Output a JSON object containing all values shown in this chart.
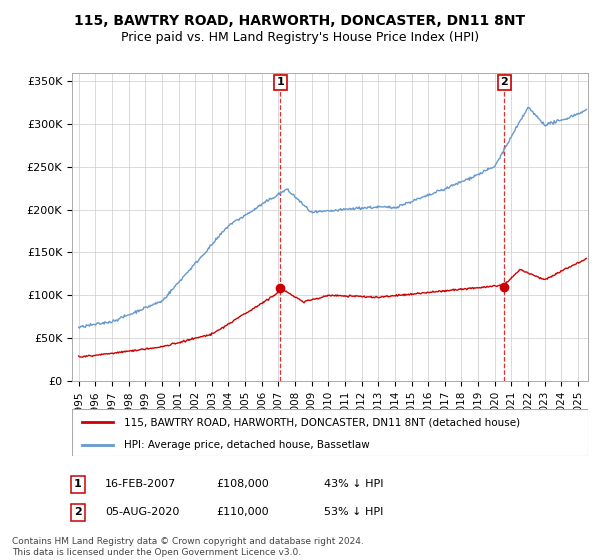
{
  "title": "115, BAWTRY ROAD, HARWORTH, DONCASTER, DN11 8NT",
  "subtitle": "Price paid vs. HM Land Registry's House Price Index (HPI)",
  "ylim": [
    0,
    360000
  ],
  "yticks": [
    0,
    50000,
    100000,
    150000,
    200000,
    250000,
    300000,
    350000
  ],
  "ytick_labels": [
    "£0",
    "£50K",
    "£100K",
    "£150K",
    "£200K",
    "£250K",
    "£300K",
    "£350K"
  ],
  "xlim_start": 1994.6,
  "xlim_end": 2025.6,
  "sale1_x": 2007.12,
  "sale1_y": 108000,
  "sale1_label": "1",
  "sale1_date": "16-FEB-2007",
  "sale1_price": "£108,000",
  "sale1_pct": "43% ↓ HPI",
  "sale2_x": 2020.58,
  "sale2_y": 110000,
  "sale2_label": "2",
  "sale2_date": "05-AUG-2020",
  "sale2_price": "£110,000",
  "sale2_pct": "53% ↓ HPI",
  "line_color_property": "#cc0000",
  "line_color_hpi": "#6699cc",
  "legend_label_property": "115, BAWTRY ROAD, HARWORTH, DONCASTER, DN11 8NT (detached house)",
  "legend_label_hpi": "HPI: Average price, detached house, Bassetlaw",
  "footer1": "Contains HM Land Registry data © Crown copyright and database right 2024.",
  "footer2": "This data is licensed under the Open Government Licence v3.0.",
  "background_color": "#ffffff",
  "grid_color": "#cccccc",
  "title_fontsize": 10,
  "subtitle_fontsize": 9
}
